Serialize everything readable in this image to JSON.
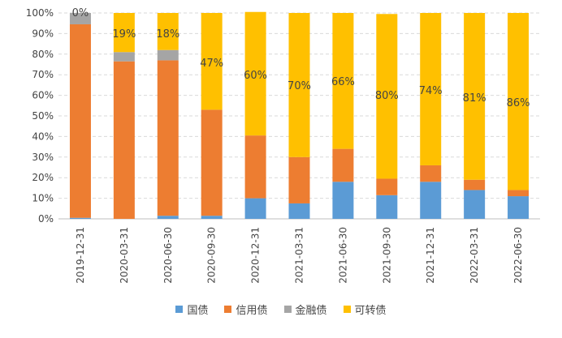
{
  "chart_data": {
    "type": "bar",
    "stacked": true,
    "categories": [
      "2019-12-31",
      "2020-03-31",
      "2020-06-30",
      "2020-09-30",
      "2020-12-31",
      "2021-03-31",
      "2021-06-30",
      "2021-09-30",
      "2021-12-31",
      "2022-03-31",
      "2022-06-30"
    ],
    "series": [
      {
        "name": "国债",
        "color": "#5b9bd5",
        "values": [
          0.5,
          0,
          1.5,
          1.5,
          10,
          7.5,
          18,
          11.5,
          18,
          14,
          11
        ]
      },
      {
        "name": "信用债",
        "color": "#ed7d31",
        "values": [
          94,
          76.5,
          75.5,
          51.5,
          30.5,
          22.5,
          16,
          8,
          8,
          5,
          3
        ]
      },
      {
        "name": "金融债",
        "color": "#a5a5a5",
        "values": [
          5.5,
          4.5,
          5,
          0,
          0,
          0,
          0,
          0,
          0,
          0,
          0
        ]
      },
      {
        "name": "可转债",
        "color": "#ffc000",
        "values": [
          0,
          19,
          18,
          47,
          60,
          70,
          66,
          80,
          74,
          81,
          86
        ]
      }
    ],
    "data_labels": [
      "0%",
      "19%",
      "18%",
      "47%",
      "60%",
      "70%",
      "66%",
      "80%",
      "74%",
      "81%",
      "86%"
    ],
    "ylim": [
      0,
      100
    ],
    "yticks": [
      "0%",
      "10%",
      "20%",
      "30%",
      "40%",
      "50%",
      "60%",
      "70%",
      "80%",
      "90%",
      "100%"
    ],
    "grid": true,
    "legend_position": "bottom",
    "xlabel": "",
    "ylabel": ""
  }
}
